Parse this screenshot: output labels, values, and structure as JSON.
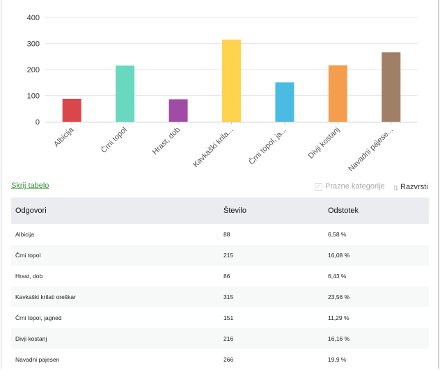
{
  "chart_data": {
    "type": "bar",
    "title": "",
    "xlabel": "",
    "ylabel": "",
    "ylim": [
      0,
      400
    ],
    "yticks": [
      0,
      100,
      200,
      300,
      400
    ],
    "grid": true,
    "categories": [
      "Albicija",
      "Črni topol",
      "Hrast, dob",
      "Kavkaški krila...",
      "Črni topol, ja...",
      "Divji kostanj",
      "Navadni pajese..."
    ],
    "values": [
      88,
      215,
      86,
      315,
      151,
      216,
      266
    ],
    "colors": [
      "#d9474c",
      "#68d8bf",
      "#a04ba4",
      "#ffd34d",
      "#4cbbe3",
      "#f59d4e",
      "#a07f66"
    ]
  },
  "toolbar": {
    "hide_table_label": "Skrij tabelo",
    "empty_categories_label": "Prazne kategorije",
    "empty_categories_checked": true,
    "sort_label": "Razvrsti",
    "sort_icon": "sort-arrows-icon"
  },
  "table": {
    "headers": [
      "Odgovori",
      "Število",
      "Odstotek"
    ],
    "rows": [
      [
        "Albicija",
        "88",
        "6,58 %"
      ],
      [
        "Črni topol",
        "215",
        "16,08 %"
      ],
      [
        "Hrast, dob",
        "86",
        "6,43 %"
      ],
      [
        "Kavkaški krilati oreškar",
        "315",
        "23,56 %"
      ],
      [
        "Črni topol, jagned",
        "151",
        "11,29 %"
      ],
      [
        "Divji kostanj",
        "216",
        "16,16 %"
      ],
      [
        "Navadni pajesen",
        "266",
        "19,9 %"
      ]
    ]
  }
}
